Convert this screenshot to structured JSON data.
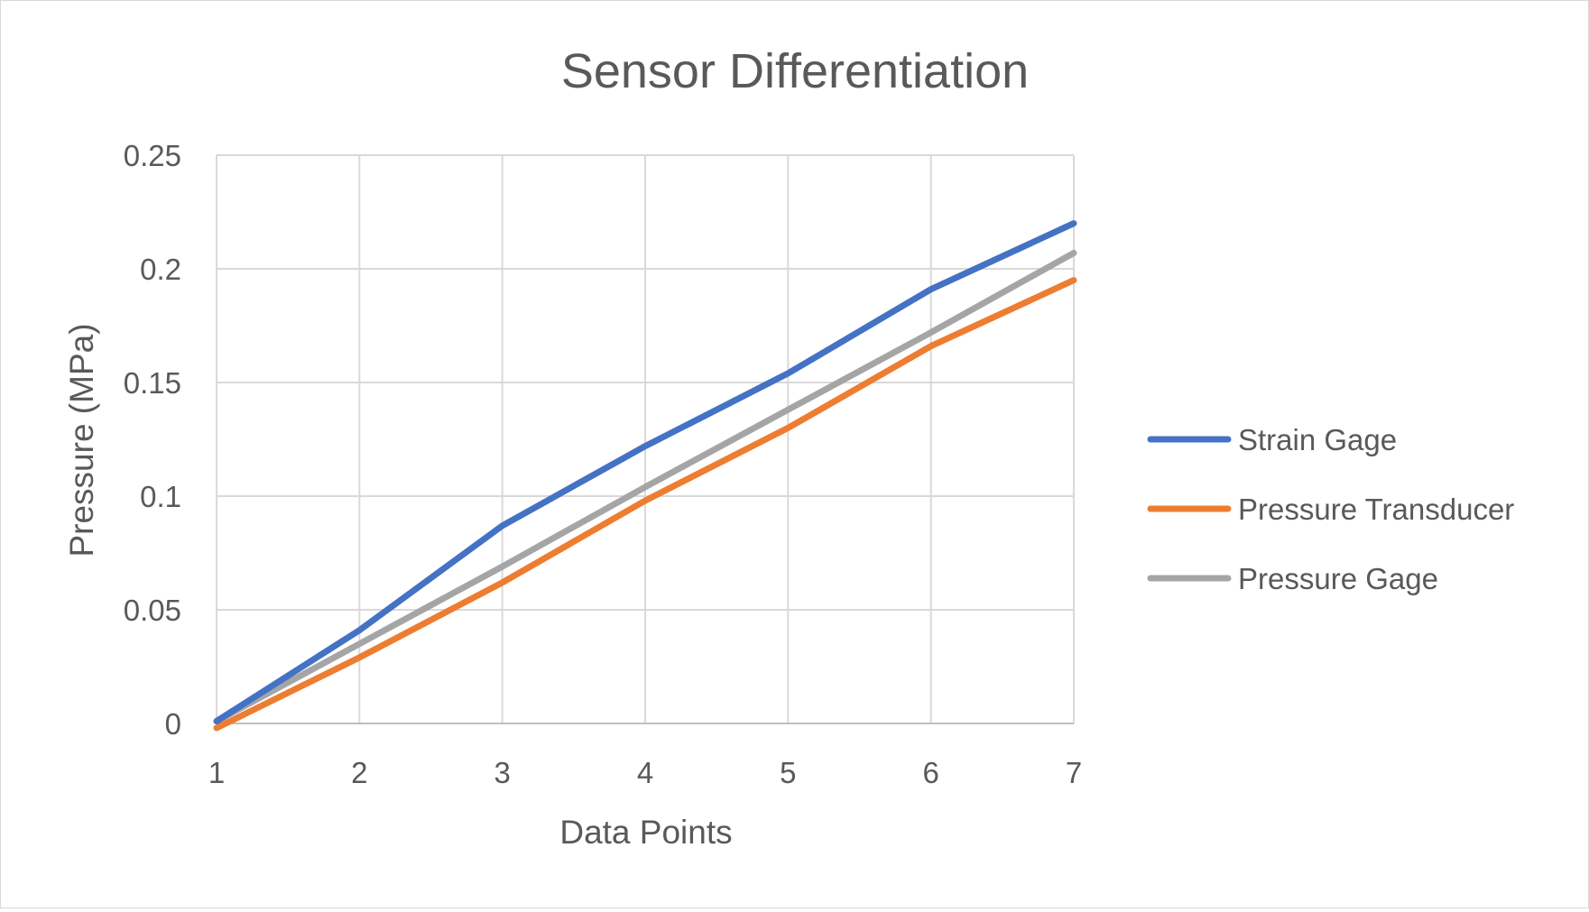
{
  "chart_data": {
    "type": "line",
    "title": "Sensor Differentiation",
    "xlabel": "Data Points",
    "ylabel": "Pressure (MPa)",
    "categories": [
      "1",
      "2",
      "3",
      "4",
      "5",
      "6",
      "7"
    ],
    "ylim": [
      0,
      0.25
    ],
    "yticks": [
      "0",
      "0.05",
      "0.1",
      "0.15",
      "0.2",
      "0.25"
    ],
    "grid": true,
    "legend_position": "right",
    "series": [
      {
        "name": "Strain Gage",
        "color": "#4472c4",
        "values": [
          0.001,
          0.041,
          0.087,
          0.122,
          0.154,
          0.191,
          0.22
        ]
      },
      {
        "name": "Pressure Transducer",
        "color": "#ed7d31",
        "values": [
          -0.002,
          0.029,
          0.062,
          0.098,
          0.13,
          0.166,
          0.195
        ]
      },
      {
        "name": "Pressure Gage",
        "color": "#a5a5a5",
        "values": [
          0.001,
          0.035,
          0.069,
          0.104,
          0.138,
          0.172,
          0.207
        ]
      }
    ]
  }
}
